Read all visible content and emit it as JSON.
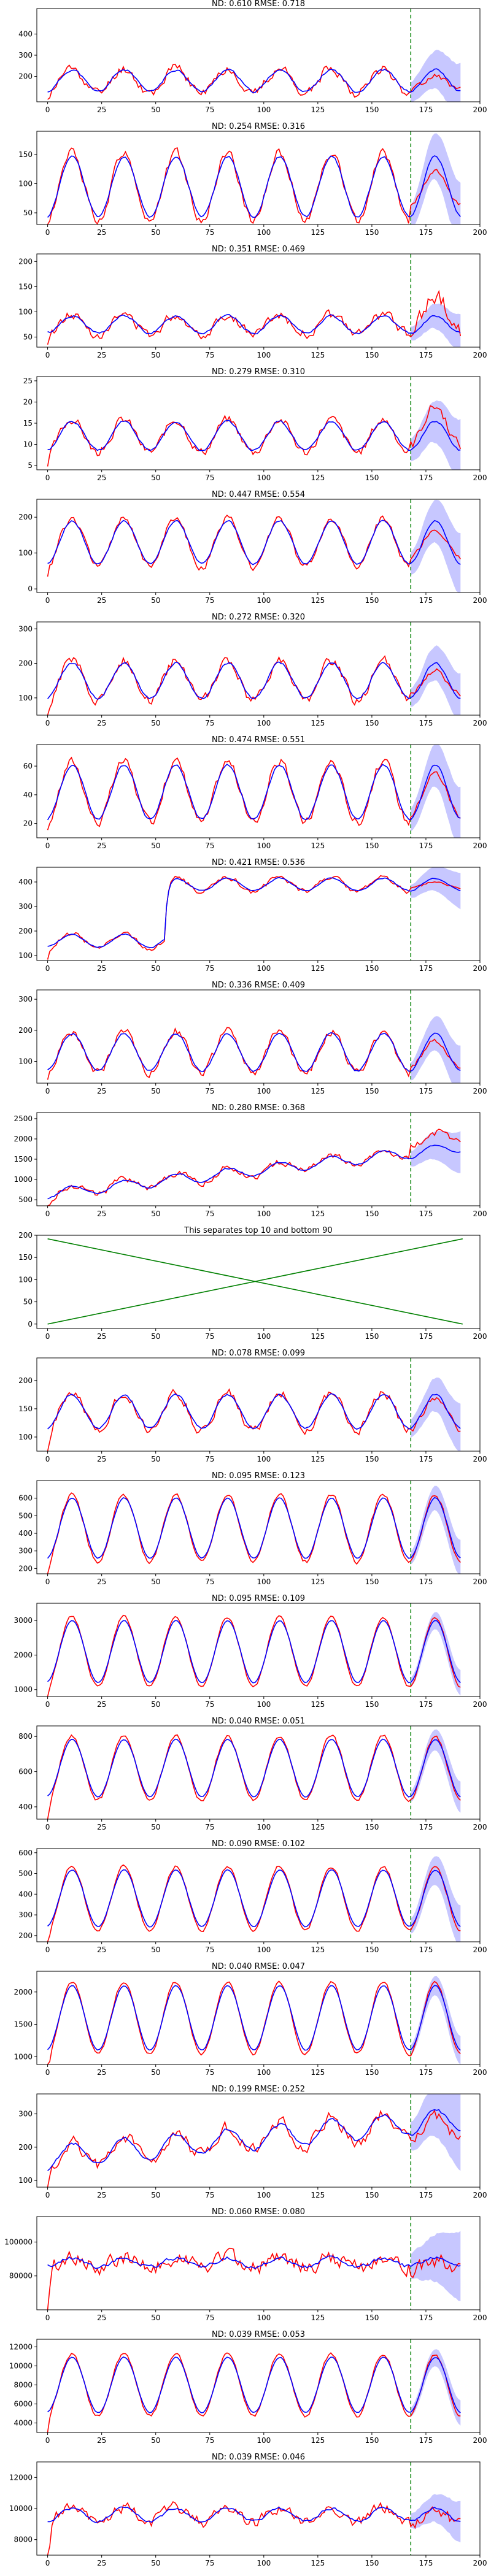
{
  "chart_data": [
    {
      "type": "line",
      "title": "ND:  0.610 RMSE:  0.718",
      "yticks": [
        200,
        300,
        400
      ],
      "ylim": [
        80,
        520
      ],
      "xlim": [
        -5,
        200
      ],
      "xticks": [
        0,
        25,
        50,
        75,
        100,
        125,
        150,
        175,
        200
      ],
      "split_x": 168,
      "seed": 11,
      "base": 180,
      "amp": 60,
      "trend": 0,
      "noise": 35,
      "after_drop": 0.6,
      "band": 90,
      "series": [
        {
          "name": "",
          "color": "#ff0000"
        },
        {
          "name": "",
          "color": "#0000ff"
        }
      ]
    },
    {
      "type": "line",
      "title": "ND:  0.254 RMSE:  0.316",
      "yticks": [
        50,
        100,
        150
      ],
      "ylim": [
        30,
        190
      ],
      "xlim": [
        -5,
        200
      ],
      "xticks": [
        0,
        25,
        50,
        75,
        100,
        125,
        150,
        175,
        200
      ],
      "split_x": 168,
      "seed": 12,
      "base": 95,
      "amp": 60,
      "trend": 0,
      "noise": 12,
      "after_drop": 0.5,
      "band": 40,
      "series": [
        {
          "name": "",
          "color": "#ff0000"
        },
        {
          "name": "",
          "color": "#0000ff"
        }
      ]
    },
    {
      "type": "line",
      "title": "ND:  0.351 RMSE:  0.469",
      "yticks": [
        50,
        100,
        150,
        200
      ],
      "ylim": [
        30,
        215
      ],
      "xlim": [
        -5,
        200
      ],
      "xticks": [
        0,
        25,
        50,
        75,
        100,
        125,
        150,
        175,
        200
      ],
      "split_x": 168,
      "seed": 13,
      "base": 75,
      "amp": 20,
      "trend": 0,
      "noise": 14,
      "after_drop": 1.8,
      "band": 25,
      "series": [
        {
          "name": "",
          "color": "#ff0000"
        },
        {
          "name": "",
          "color": "#0000ff"
        }
      ]
    },
    {
      "type": "line",
      "title": "ND:  0.279 RMSE:  0.310",
      "yticks": [
        5,
        10,
        15,
        20,
        25
      ],
      "ylim": [
        4,
        26
      ],
      "xlim": [
        -5,
        200
      ],
      "xticks": [
        0,
        25,
        50,
        75,
        100,
        125,
        150,
        175,
        200
      ],
      "split_x": 168,
      "seed": 14,
      "base": 12,
      "amp": 4,
      "trend": 0,
      "noise": 1.6,
      "after_drop": 1.2,
      "band": 5,
      "series": [
        {
          "name": "",
          "color": "#ff0000"
        },
        {
          "name": "",
          "color": "#0000ff"
        }
      ]
    },
    {
      "type": "line",
      "title": "ND:  0.447 RMSE:  0.554",
      "yticks": [
        0,
        100,
        200
      ],
      "ylim": [
        -10,
        250
      ],
      "xlim": [
        -5,
        200
      ],
      "xticks": [
        0,
        25,
        50,
        75,
        100,
        125,
        150,
        175,
        200
      ],
      "split_x": 168,
      "seed": 15,
      "base": 130,
      "amp": 70,
      "trend": 0,
      "noise": 15,
      "after_drop": 0.6,
      "band": 60,
      "series": [
        {
          "name": "",
          "color": "#ff0000"
        },
        {
          "name": "",
          "color": "#0000ff"
        }
      ]
    },
    {
      "type": "line",
      "title": "ND:  0.272 RMSE:  0.320",
      "yticks": [
        100,
        200,
        300
      ],
      "ylim": [
        50,
        320
      ],
      "xlim": [
        -5,
        200
      ],
      "xticks": [
        0,
        25,
        50,
        75,
        100,
        125,
        150,
        175,
        200
      ],
      "split_x": 168,
      "seed": 16,
      "base": 150,
      "amp": 60,
      "trend": 0,
      "noise": 22,
      "after_drop": 0.6,
      "band": 50,
      "series": [
        {
          "name": "",
          "color": "#ff0000"
        },
        {
          "name": "",
          "color": "#0000ff"
        }
      ]
    },
    {
      "type": "line",
      "title": "ND:  0.474 RMSE:  0.551",
      "yticks": [
        20,
        40,
        60
      ],
      "ylim": [
        10,
        75
      ],
      "xlim": [
        -5,
        200
      ],
      "xticks": [
        0,
        25,
        50,
        75,
        100,
        125,
        150,
        175,
        200
      ],
      "split_x": 168,
      "seed": 17,
      "base": 42,
      "amp": 22,
      "trend": 0,
      "noise": 5,
      "after_drop": 0.7,
      "band": 15,
      "series": [
        {
          "name": "",
          "color": "#ff0000"
        },
        {
          "name": "",
          "color": "#0000ff"
        }
      ]
    },
    {
      "type": "line",
      "title": "ND:  0.421 RMSE:  0.536",
      "yticks": [
        100,
        200,
        300,
        400
      ],
      "ylim": [
        80,
        460
      ],
      "xlim": [
        -5,
        200
      ],
      "xticks": [
        0,
        25,
        50,
        75,
        100,
        125,
        150,
        175,
        200
      ],
      "split_x": 168,
      "seed": 18,
      "base": 160,
      "amp": 30,
      "trend": 0,
      "noise": 15,
      "step_at": 55,
      "step_to": 390,
      "after_drop": 0.45,
      "band": 50,
      "series": [
        {
          "name": "",
          "color": "#ff0000"
        },
        {
          "name": "",
          "color": "#0000ff"
        }
      ]
    },
    {
      "type": "line",
      "title": "ND:  0.336 RMSE:  0.409",
      "yticks": [
        100,
        200,
        300
      ],
      "ylim": [
        30,
        330
      ],
      "xlim": [
        -5,
        200
      ],
      "xticks": [
        0,
        25,
        50,
        75,
        100,
        125,
        150,
        175,
        200
      ],
      "split_x": 168,
      "seed": 19,
      "base": 130,
      "amp": 70,
      "trend": 0,
      "noise": 20,
      "after_drop": 0.6,
      "band": 55,
      "series": [
        {
          "name": "",
          "color": "#ff0000"
        },
        {
          "name": "",
          "color": "#0000ff"
        }
      ]
    },
    {
      "type": "line",
      "title": "ND:  0.280 RMSE:  0.368",
      "yticks": [
        500,
        1000,
        1500,
        2000,
        2500
      ],
      "ylim": [
        350,
        2650
      ],
      "xlim": [
        -5,
        200
      ],
      "xticks": [
        0,
        25,
        50,
        75,
        100,
        125,
        150,
        175,
        200
      ],
      "split_x": 168,
      "seed": 20,
      "base": 650,
      "amp": 150,
      "trend": 6,
      "noise": 120,
      "after_drop": 1.1,
      "band": 350,
      "series": [
        {
          "name": "",
          "color": "#ff0000"
        },
        {
          "name": "",
          "color": "#0000ff"
        }
      ]
    },
    {
      "type": "line",
      "kind": "separator",
      "title": "This separates top 10 and bottom 90",
      "yticks": [
        0,
        50,
        100,
        150,
        200
      ],
      "ylim": [
        -10,
        200
      ],
      "xlim": [
        -5,
        200
      ],
      "xticks": [
        0,
        25,
        50,
        75,
        100,
        125,
        150,
        175,
        200
      ],
      "series": [
        {
          "name": "",
          "color": "#008000",
          "x": [
            0,
            192
          ],
          "y": [
            192,
            0
          ]
        },
        {
          "name": "",
          "color": "#008000",
          "x": [
            0,
            192
          ],
          "y": [
            0,
            192
          ]
        }
      ]
    },
    {
      "type": "line",
      "title": "ND:  0.078 RMSE:  0.099",
      "yticks": [
        100,
        150,
        200
      ],
      "ylim": [
        75,
        240
      ],
      "xlim": [
        -5,
        200
      ],
      "xticks": [
        0,
        25,
        50,
        75,
        100,
        125,
        150,
        175,
        200
      ],
      "split_x": 168,
      "seed": 21,
      "base": 145,
      "amp": 35,
      "trend": 0,
      "noise": 12,
      "after_drop": 0.85,
      "band": 30,
      "series": [
        {
          "name": "",
          "color": "#ff0000"
        },
        {
          "name": "",
          "color": "#0000ff"
        }
      ]
    },
    {
      "type": "line",
      "title": "ND:  0.095 RMSE:  0.123",
      "yticks": [
        200,
        300,
        400,
        500,
        600
      ],
      "ylim": [
        170,
        700
      ],
      "xlim": [
        -5,
        200
      ],
      "xticks": [
        0,
        25,
        50,
        75,
        100,
        125,
        150,
        175,
        200
      ],
      "split_x": 168,
      "seed": 22,
      "base": 430,
      "amp": 200,
      "trend": 0,
      "noise": 18,
      "after_drop": 1,
      "band": 70,
      "series": [
        {
          "name": "",
          "color": "#ff0000"
        },
        {
          "name": "",
          "color": "#0000ff"
        }
      ]
    },
    {
      "type": "line",
      "title": "ND:  0.095 RMSE:  0.109",
      "yticks": [
        1000,
        2000,
        3000
      ],
      "ylim": [
        800,
        3500
      ],
      "xlim": [
        -5,
        200
      ],
      "xticks": [
        0,
        25,
        50,
        75,
        100,
        125,
        150,
        175,
        200
      ],
      "split_x": 168,
      "seed": 23,
      "base": 2100,
      "amp": 1050,
      "trend": 0,
      "noise": 60,
      "after_drop": 1,
      "band": 250,
      "series": [
        {
          "name": "",
          "color": "#ff0000"
        },
        {
          "name": "",
          "color": "#0000ff"
        }
      ]
    },
    {
      "type": "line",
      "title": "ND:  0.040 RMSE:  0.051",
      "yticks": [
        400,
        600,
        800
      ],
      "ylim": [
        330,
        860
      ],
      "xlim": [
        -5,
        200
      ],
      "xticks": [
        0,
        25,
        50,
        75,
        100,
        125,
        150,
        175,
        200
      ],
      "split_x": 168,
      "seed": 24,
      "base": 620,
      "amp": 190,
      "trend": 0,
      "noise": 15,
      "after_drop": 1,
      "band": 60,
      "series": [
        {
          "name": "",
          "color": "#ff0000"
        },
        {
          "name": "",
          "color": "#0000ff"
        }
      ]
    },
    {
      "type": "line",
      "title": "ND:  0.090 RMSE:  0.102",
      "yticks": [
        200,
        300,
        400,
        500,
        600
      ],
      "ylim": [
        170,
        620
      ],
      "xlim": [
        -5,
        200
      ],
      "xticks": [
        0,
        25,
        50,
        75,
        100,
        125,
        150,
        175,
        200
      ],
      "split_x": 168,
      "seed": 25,
      "base": 380,
      "amp": 160,
      "trend": 0,
      "noise": 12,
      "after_drop": 1,
      "band": 70,
      "series": [
        {
          "name": "",
          "color": "#ff0000"
        },
        {
          "name": "",
          "color": "#0000ff"
        }
      ]
    },
    {
      "type": "line",
      "title": "ND:  0.040 RMSE:  0.047",
      "yticks": [
        1000,
        1500,
        2000
      ],
      "ylim": [
        880,
        2320
      ],
      "xlim": [
        -5,
        200
      ],
      "xticks": [
        0,
        25,
        50,
        75,
        100,
        125,
        150,
        175,
        200
      ],
      "split_x": 168,
      "seed": 26,
      "base": 1600,
      "amp": 580,
      "trend": 0,
      "noise": 35,
      "after_drop": 1,
      "band": 150,
      "series": [
        {
          "name": "",
          "color": "#ff0000"
        },
        {
          "name": "",
          "color": "#0000ff"
        }
      ]
    },
    {
      "type": "line",
      "title": "ND:  0.199 RMSE:  0.252",
      "yticks": [
        100,
        200,
        300
      ],
      "ylim": [
        80,
        360
      ],
      "xlim": [
        -5,
        200
      ],
      "xticks": [
        0,
        25,
        50,
        75,
        100,
        125,
        150,
        175,
        200
      ],
      "split_x": 168,
      "seed": 27,
      "base": 170,
      "amp": 40,
      "trend": 0.6,
      "noise": 30,
      "after_drop": 0.9,
      "band": 80,
      "series": [
        {
          "name": "",
          "color": "#ff0000"
        },
        {
          "name": "",
          "color": "#0000ff"
        }
      ]
    },
    {
      "type": "line",
      "title": "ND:  0.060 RMSE:  0.080",
      "yticks": [
        80000,
        100000
      ],
      "ylim": [
        60000,
        115000
      ],
      "xlim": [
        -5,
        200
      ],
      "xticks": [
        0,
        25,
        50,
        75,
        100,
        125,
        150,
        175,
        200
      ],
      "split_x": 168,
      "seed": 28,
      "base": 88000,
      "amp": 3000,
      "trend": 0,
      "noise": 7000,
      "after_drop": 1,
      "band": 14000,
      "series": [
        {
          "name": "",
          "color": "#ff0000"
        },
        {
          "name": "",
          "color": "#0000ff"
        }
      ]
    },
    {
      "type": "line",
      "title": "ND:  0.039 RMSE:  0.053",
      "yticks": [
        4000,
        6000,
        8000,
        10000,
        12000
      ],
      "ylim": [
        3000,
        12800
      ],
      "xlim": [
        -5,
        200
      ],
      "xticks": [
        0,
        25,
        50,
        75,
        100,
        125,
        150,
        175,
        200
      ],
      "split_x": 168,
      "seed": 29,
      "base": 8000,
      "amp": 3400,
      "trend": 0,
      "noise": 250,
      "after_drop": 1,
      "band": 900,
      "series": [
        {
          "name": "",
          "color": "#ff0000"
        },
        {
          "name": "",
          "color": "#0000ff"
        }
      ]
    },
    {
      "type": "line",
      "title": "ND:  0.039 RMSE:  0.046",
      "yticks": [
        8000,
        10000,
        12000
      ],
      "ylim": [
        7000,
        13000
      ],
      "xlim": [
        -5,
        200
      ],
      "xticks": [
        0,
        25,
        50,
        75,
        100,
        125,
        150,
        175,
        200
      ],
      "split_x": 168,
      "seed": 30,
      "base": 9600,
      "amp": 500,
      "trend": 0,
      "noise": 550,
      "after_drop": 1,
      "band": 900,
      "series": [
        {
          "name": "",
          "color": "#ff0000"
        },
        {
          "name": "",
          "color": "#0000ff"
        }
      ]
    }
  ]
}
